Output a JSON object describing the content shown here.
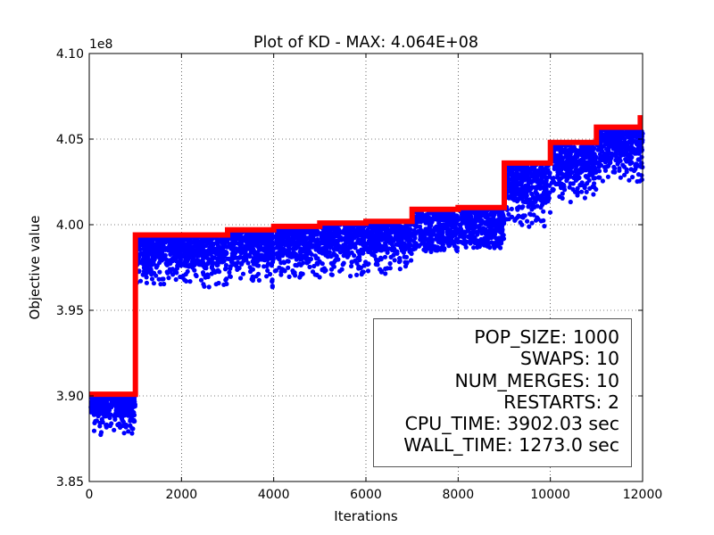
{
  "chart_data": {
    "type": "scatter",
    "title": "Plot of KD - MAX: 4.064E+08",
    "xlabel": "Iterations",
    "ylabel": "Objective value",
    "offset_label": "1e8",
    "xlim": [
      0,
      12000
    ],
    "ylim": [
      3.85,
      4.1
    ],
    "grid": true,
    "x_ticks": [
      0,
      2000,
      4000,
      6000,
      8000,
      10000,
      12000
    ],
    "x_tick_labels": [
      "0",
      "2000",
      "4000",
      "6000",
      "8000",
      "10000",
      "12000"
    ],
    "y_ticks": [
      3.85,
      3.9,
      3.95,
      4.0,
      4.05,
      4.1
    ],
    "y_tick_labels": [
      "3.85",
      "3.90",
      "3.95",
      "4.00",
      "4.05",
      "4.10"
    ],
    "series": [
      {
        "role": "best-so-far",
        "color": "#ff0000",
        "kind": "step-line",
        "points": [
          [
            0,
            3.901
          ],
          [
            1000,
            3.901
          ],
          [
            1000,
            3.994
          ],
          [
            3000,
            3.994
          ],
          [
            3000,
            3.997
          ],
          [
            4000,
            3.997
          ],
          [
            4000,
            3.999
          ],
          [
            5000,
            3.999
          ],
          [
            5000,
            4.001
          ],
          [
            6000,
            4.001
          ],
          [
            6000,
            4.002
          ],
          [
            7000,
            4.002
          ],
          [
            7000,
            4.009
          ],
          [
            8000,
            4.009
          ],
          [
            8000,
            4.01
          ],
          [
            9000,
            4.01
          ],
          [
            9000,
            4.036
          ],
          [
            10000,
            4.036
          ],
          [
            10000,
            4.048
          ],
          [
            11000,
            4.048
          ],
          [
            11000,
            4.057
          ],
          [
            11950,
            4.057
          ],
          [
            11950,
            4.064
          ]
        ]
      },
      {
        "role": "population",
        "color": "#0000ff",
        "kind": "scatter-band",
        "segments": [
          {
            "x": [
              0,
              1000
            ],
            "max": 3.901,
            "dense_low": 3.888,
            "min": 3.876
          },
          {
            "x": [
              1000,
              3000
            ],
            "max": 3.994,
            "dense_low": 3.976,
            "min": 3.962
          },
          {
            "x": [
              3000,
              4000
            ],
            "max": 3.997,
            "dense_low": 3.978,
            "min": 3.963
          },
          {
            "x": [
              4000,
              5000
            ],
            "max": 3.999,
            "dense_low": 3.98,
            "min": 3.967
          },
          {
            "x": [
              5000,
              6000
            ],
            "max": 4.001,
            "dense_low": 3.982,
            "min": 3.969
          },
          {
            "x": [
              6000,
              7000
            ],
            "max": 4.002,
            "dense_low": 3.984,
            "min": 3.971
          },
          {
            "x": [
              7000,
              8000
            ],
            "max": 4.009,
            "dense_low": 3.988,
            "min": 3.984
          },
          {
            "x": [
              8000,
              9000
            ],
            "max": 4.01,
            "dense_low": 3.99,
            "min": 3.986
          },
          {
            "x": [
              9000,
              10000
            ],
            "max": 4.036,
            "dense_low": 4.012,
            "min": 3.998
          },
          {
            "x": [
              10000,
              11000
            ],
            "max": 4.048,
            "dense_low": 4.026,
            "min": 4.012
          },
          {
            "x": [
              11000,
              12000
            ],
            "max": 4.057,
            "dense_low": 4.036,
            "min": 4.024
          }
        ]
      }
    ],
    "legend": {
      "placement": "lower-right",
      "lines": [
        "POP_SIZE: 1000",
        "SWAPS: 10",
        "NUM_MERGES: 10",
        "RESTARTS: 2",
        "CPU_TIME: 3902.03 sec",
        "WALL_TIME: 1273.0 sec"
      ]
    }
  }
}
